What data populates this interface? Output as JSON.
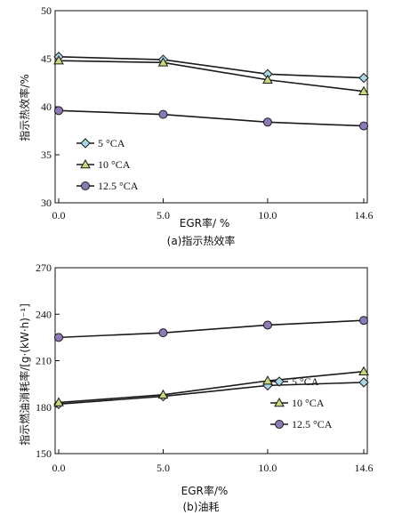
{
  "chart_data": [
    {
      "type": "line",
      "caption": "(a)指示热效率",
      "xlabel": "EGR率/ %",
      "ylabel": "指示热效率/%",
      "x": [
        0.0,
        5.0,
        10.0,
        14.6
      ],
      "x_tick_labels": [
        "0.0",
        "5.0",
        "10.0",
        "14.6"
      ],
      "ylim": [
        30,
        50
      ],
      "y_ticks": [
        30,
        35,
        40,
        45,
        50
      ],
      "y_tick_labels": [
        "30",
        "35",
        "40",
        "45",
        "50"
      ],
      "grid": false,
      "legend_position": "bottom-left",
      "series": [
        {
          "name": "5 °CA",
          "marker": "diamond",
          "values": [
            45.2,
            44.9,
            43.4,
            43.0
          ]
        },
        {
          "name": "10 °CA",
          "marker": "triangle",
          "values": [
            44.8,
            44.6,
            42.8,
            41.6
          ]
        },
        {
          "name": "12.5 °CA",
          "marker": "circle",
          "values": [
            39.6,
            39.2,
            38.4,
            38.0
          ]
        }
      ]
    },
    {
      "type": "line",
      "caption": "(b)油耗",
      "xlabel": "EGR率/%",
      "ylabel": "指示燃油消耗率/[g·(kW·h)⁻¹]",
      "x": [
        0.0,
        5.0,
        10.0,
        14.6
      ],
      "x_tick_labels": [
        "0.0",
        "5.0",
        "10.0",
        "14.6"
      ],
      "ylim": [
        150,
        270
      ],
      "y_ticks": [
        150,
        180,
        210,
        240,
        270
      ],
      "y_tick_labels": [
        "150",
        "180",
        "210",
        "240",
        "270"
      ],
      "grid": false,
      "legend_position": "bottom-right",
      "series": [
        {
          "name": "5 °CA",
          "marker": "diamond",
          "values": [
            182,
            187,
            194,
            196
          ]
        },
        {
          "name": "10 °CA",
          "marker": "triangle",
          "values": [
            183,
            188,
            197,
            203
          ]
        },
        {
          "name": "12.5 °CA",
          "marker": "circle",
          "values": [
            225,
            228,
            233,
            236
          ]
        }
      ]
    }
  ],
  "colors": {
    "line": "#1a1a1a",
    "diamond_fill": "#a8d8e8",
    "triangle_fill": "#c8d87a",
    "circle_fill": "#8c7ab8"
  }
}
